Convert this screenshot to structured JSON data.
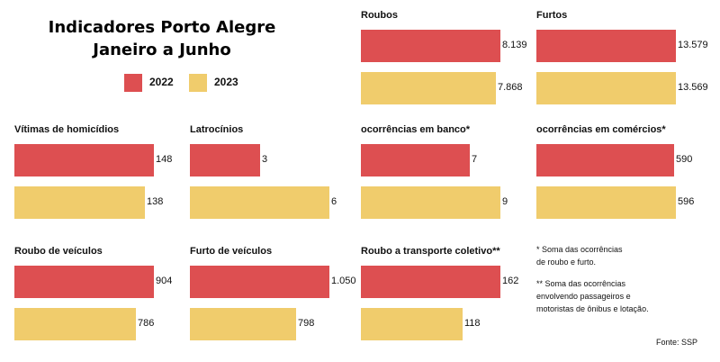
{
  "title": [
    "Indicadores Porto Alegre",
    "Janeiro a Junho"
  ],
  "legend": [
    {
      "label": "2022",
      "color": "#dd4f51"
    },
    {
      "label": "2023",
      "color": "#f0cc6c"
    }
  ],
  "chart_data": [
    {
      "type": "bar",
      "orientation": "horizontal",
      "title": "Roubos",
      "categories": [
        "2022",
        "2023"
      ],
      "values": [
        8139,
        7868
      ],
      "labels": [
        "8.139",
        "7.868"
      ]
    },
    {
      "type": "bar",
      "orientation": "horizontal",
      "title": "Furtos",
      "categories": [
        "2022",
        "2023"
      ],
      "values": [
        13579,
        13569
      ],
      "labels": [
        "13.579",
        "13.569"
      ]
    },
    {
      "type": "bar",
      "orientation": "horizontal",
      "title": "Vítimas de homicídios",
      "categories": [
        "2022",
        "2023"
      ],
      "values": [
        148,
        138
      ],
      "labels": [
        "148",
        "138"
      ]
    },
    {
      "type": "bar",
      "orientation": "horizontal",
      "title": "Latrocínios",
      "categories": [
        "2022",
        "2023"
      ],
      "values": [
        3,
        6
      ],
      "labels": [
        "3",
        "6"
      ]
    },
    {
      "type": "bar",
      "orientation": "horizontal",
      "title": "ocorrências em banco*",
      "categories": [
        "2022",
        "2023"
      ],
      "values": [
        7,
        9
      ],
      "labels": [
        "7",
        "9"
      ]
    },
    {
      "type": "bar",
      "orientation": "horizontal",
      "title": "ocorrências em comércios*",
      "categories": [
        "2022",
        "2023"
      ],
      "values": [
        590,
        596
      ],
      "labels": [
        "590",
        "596"
      ]
    },
    {
      "type": "bar",
      "orientation": "horizontal",
      "title": "Roubo de veículos",
      "categories": [
        "2022",
        "2023"
      ],
      "values": [
        904,
        786
      ],
      "labels": [
        "904",
        "786"
      ]
    },
    {
      "type": "bar",
      "orientation": "horizontal",
      "title": "Furto de veículos",
      "categories": [
        "2022",
        "2023"
      ],
      "values": [
        1050,
        798
      ],
      "labels": [
        "1.050",
        "798"
      ]
    },
    {
      "type": "bar",
      "orientation": "horizontal",
      "title": "Roubo a transporte coletivo**",
      "categories": [
        "2022",
        "2023"
      ],
      "values": [
        162,
        118
      ],
      "labels": [
        "162",
        "118"
      ]
    }
  ],
  "notes": [
    [
      "* Soma das ocorrências",
      "de roubo e furto."
    ],
    [
      "** Soma das ocorrências",
      "envolvendo passageiros e",
      "motoristas de ônibus e lotação."
    ]
  ],
  "source": "Fonte: SSP"
}
